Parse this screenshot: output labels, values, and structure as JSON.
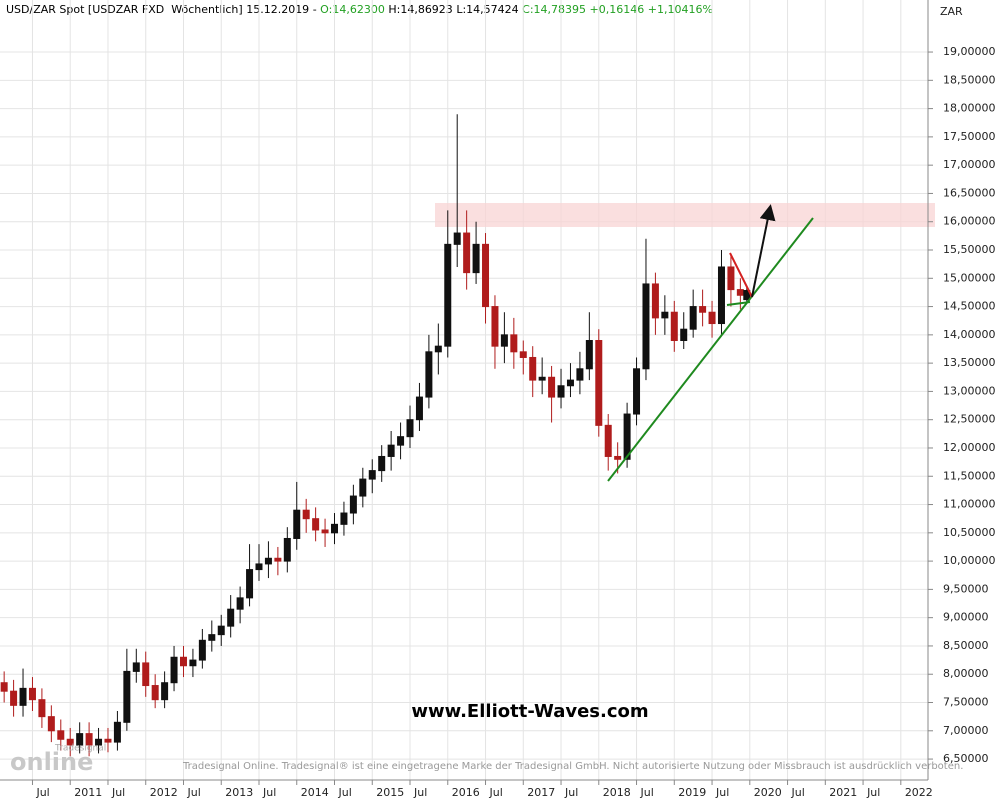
{
  "chart_data": {
    "type": "candlestick",
    "header": {
      "symbol": "USD/ZAR Spot [USDZAR FXD  Wöchentlich]",
      "date": "15.12.2019",
      "separator": "-",
      "open": "O:14,62300",
      "high": "H:14,86923",
      "low": "L:14,57424",
      "close": "C:14,78395",
      "change": "+0,16146",
      "change_pct": "+1,10416%"
    },
    "y_axis_label": "ZAR",
    "watermark": "www.Elliott-Waves.com",
    "footer": "Tradesignal Online. Tradesignal® ist eine eingetragene Marke der Tradesignal GmbH. Nicht autorisierte Nutzung oder Missbrauch ist ausdrücklich verboten.",
    "logo_small": "Tradesignal",
    "logo_big": "online",
    "up_color": "#111111",
    "down_color": "#b01c1c",
    "grid": true,
    "xlim": [
      2010.07,
      2022.36
    ],
    "xticks": [
      {
        "value": 2010.5,
        "label": "Jul"
      },
      {
        "value": 2011,
        "label": "2011"
      },
      {
        "value": 2011.5,
        "label": "Jul"
      },
      {
        "value": 2012,
        "label": "2012"
      },
      {
        "value": 2012.5,
        "label": "Jul"
      },
      {
        "value": 2013,
        "label": "2013"
      },
      {
        "value": 2013.5,
        "label": "Jul"
      },
      {
        "value": 2014,
        "label": "2014"
      },
      {
        "value": 2014.5,
        "label": "Jul"
      },
      {
        "value": 2015,
        "label": "2015"
      },
      {
        "value": 2015.5,
        "label": "Jul"
      },
      {
        "value": 2016,
        "label": "2016"
      },
      {
        "value": 2016.5,
        "label": "Jul"
      },
      {
        "value": 2017,
        "label": "2017"
      },
      {
        "value": 2017.5,
        "label": "Jul"
      },
      {
        "value": 2018,
        "label": "2018"
      },
      {
        "value": 2018.5,
        "label": "Jul"
      },
      {
        "value": 2019,
        "label": "2019"
      },
      {
        "value": 2019.5,
        "label": "Jul"
      },
      {
        "value": 2020,
        "label": "2020"
      },
      {
        "value": 2020.5,
        "label": "Jul"
      },
      {
        "value": 2021,
        "label": "2021"
      },
      {
        "value": 2021.5,
        "label": "Jul"
      },
      {
        "value": 2022,
        "label": "2022"
      }
    ],
    "ylim": [
      6.13,
      19.92
    ],
    "yticks": [
      {
        "value": 6.5,
        "label": "6,50000"
      },
      {
        "value": 7,
        "label": "7,00000"
      },
      {
        "value": 7.5,
        "label": "7,50000"
      },
      {
        "value": 8,
        "label": "8,00000"
      },
      {
        "value": 8.5,
        "label": "8,50000"
      },
      {
        "value": 9,
        "label": "9,00000"
      },
      {
        "value": 9.5,
        "label": "9,50000"
      },
      {
        "value": 10,
        "label": "10,00000"
      },
      {
        "value": 10.5,
        "label": "10,50000"
      },
      {
        "value": 11,
        "label": "11,00000"
      },
      {
        "value": 11.5,
        "label": "11,50000"
      },
      {
        "value": 12,
        "label": "12,00000"
      },
      {
        "value": 12.5,
        "label": "12,50000"
      },
      {
        "value": 13,
        "label": "13,00000"
      },
      {
        "value": 13.5,
        "label": "13,50000"
      },
      {
        "value": 14,
        "label": "14,00000"
      },
      {
        "value": 14.5,
        "label": "14,50000"
      },
      {
        "value": 15,
        "label": "15,00000"
      },
      {
        "value": 15.5,
        "label": "15,50000"
      },
      {
        "value": 16,
        "label": "16,00000"
      },
      {
        "value": 16.5,
        "label": "16,50000"
      },
      {
        "value": 17,
        "label": "17,00000"
      },
      {
        "value": 17.5,
        "label": "17,50000"
      },
      {
        "value": 18,
        "label": "18,00000"
      },
      {
        "value": 18.5,
        "label": "18,50000"
      },
      {
        "value": 19,
        "label": "19,00000"
      }
    ],
    "x": [
      2010.125,
      2010.25,
      2010.375,
      2010.5,
      2010.625,
      2010.75,
      2010.875,
      2011,
      2011.125,
      2011.25,
      2011.375,
      2011.5,
      2011.625,
      2011.75,
      2011.875,
      2012,
      2012.125,
      2012.25,
      2012.375,
      2012.5,
      2012.625,
      2012.75,
      2012.875,
      2013,
      2013.125,
      2013.25,
      2013.375,
      2013.5,
      2013.625,
      2013.75,
      2013.875,
      2014,
      2014.125,
      2014.25,
      2014.375,
      2014.5,
      2014.625,
      2014.75,
      2014.875,
      2015,
      2015.125,
      2015.25,
      2015.375,
      2015.5,
      2015.625,
      2015.75,
      2015.875,
      2016,
      2016.125,
      2016.25,
      2016.375,
      2016.5,
      2016.625,
      2016.75,
      2016.875,
      2017,
      2017.125,
      2017.25,
      2017.375,
      2017.5,
      2017.625,
      2017.75,
      2017.875,
      2018,
      2018.125,
      2018.25,
      2018.375,
      2018.5,
      2018.625,
      2018.75,
      2018.875,
      2019,
      2019.125,
      2019.25,
      2019.375,
      2019.5,
      2019.625,
      2019.75,
      2019.875,
      2019.96
    ],
    "open": [
      7.85,
      7.7,
      7.45,
      7.75,
      7.55,
      7.25,
      7.0,
      6.85,
      6.75,
      6.95,
      6.75,
      6.85,
      6.8,
      7.15,
      8.05,
      8.2,
      7.8,
      7.55,
      7.85,
      8.3,
      8.15,
      8.25,
      8.6,
      8.7,
      8.85,
      9.15,
      9.35,
      9.85,
      9.95,
      10.05,
      10.0,
      10.4,
      10.9,
      10.75,
      10.55,
      10.5,
      10.65,
      10.85,
      11.15,
      11.45,
      11.6,
      11.85,
      12.05,
      12.2,
      12.5,
      12.9,
      13.7,
      13.8,
      15.6,
      15.8,
      15.1,
      15.6,
      14.5,
      13.8,
      14.0,
      13.7,
      13.6,
      13.2,
      13.25,
      12.9,
      13.1,
      13.2,
      13.4,
      13.9,
      12.4,
      11.85,
      11.8,
      12.6,
      13.4,
      14.9,
      14.3,
      14.4,
      13.9,
      14.1,
      14.5,
      14.4,
      14.2,
      15.2,
      14.8,
      14.623
    ],
    "high": [
      8.05,
      7.9,
      8.1,
      7.95,
      7.75,
      7.45,
      7.2,
      7.05,
      7.15,
      7.15,
      7.05,
      7.05,
      7.35,
      8.45,
      8.45,
      8.4,
      8.0,
      8.05,
      8.5,
      8.5,
      8.45,
      8.8,
      8.95,
      9.05,
      9.4,
      9.55,
      10.3,
      10.3,
      10.35,
      10.25,
      10.6,
      11.4,
      11.1,
      10.95,
      10.75,
      10.85,
      11.05,
      11.35,
      11.65,
      11.8,
      12.05,
      12.3,
      12.45,
      12.75,
      13.15,
      14.0,
      14.2,
      16.2,
      17.9,
      16.2,
      16.0,
      15.8,
      14.7,
      14.4,
      14.3,
      13.9,
      13.8,
      13.6,
      13.45,
      13.4,
      13.5,
      13.7,
      14.4,
      14.1,
      12.6,
      12.1,
      12.8,
      13.6,
      15.7,
      15.1,
      14.7,
      14.6,
      14.4,
      14.8,
      14.8,
      14.6,
      15.5,
      15.4,
      15.0,
      14.86923
    ],
    "low": [
      7.5,
      7.25,
      7.25,
      7.35,
      7.05,
      6.8,
      6.65,
      6.55,
      6.6,
      6.55,
      6.6,
      6.62,
      6.65,
      7.0,
      7.85,
      7.6,
      7.4,
      7.4,
      7.7,
      7.95,
      7.95,
      8.1,
      8.4,
      8.5,
      8.65,
      8.9,
      9.2,
      9.65,
      9.7,
      9.75,
      9.8,
      10.2,
      10.5,
      10.35,
      10.25,
      10.3,
      10.45,
      10.65,
      10.95,
      11.2,
      11.4,
      11.6,
      11.8,
      12.0,
      12.3,
      12.7,
      13.3,
      13.6,
      15.2,
      14.8,
      14.9,
      14.2,
      13.4,
      13.5,
      13.4,
      13.3,
      12.9,
      12.95,
      12.45,
      12.7,
      12.9,
      12.95,
      13.2,
      12.2,
      11.6,
      11.55,
      11.65,
      12.4,
      13.2,
      14.0,
      14.0,
      13.7,
      13.75,
      13.95,
      14.15,
      13.95,
      14.0,
      14.5,
      14.45,
      14.57424
    ],
    "close": [
      7.7,
      7.45,
      7.75,
      7.55,
      7.25,
      7.0,
      6.85,
      6.75,
      6.95,
      6.75,
      6.85,
      6.8,
      7.15,
      8.05,
      8.2,
      7.8,
      7.55,
      7.85,
      8.3,
      8.15,
      8.25,
      8.6,
      8.7,
      8.85,
      9.15,
      9.35,
      9.85,
      9.95,
      10.05,
      10.0,
      10.4,
      10.9,
      10.75,
      10.55,
      10.5,
      10.65,
      10.85,
      11.15,
      11.45,
      11.6,
      11.85,
      12.05,
      12.2,
      12.5,
      12.9,
      13.7,
      13.8,
      15.6,
      15.8,
      15.1,
      15.6,
      14.5,
      13.8,
      14.0,
      13.7,
      13.6,
      13.2,
      13.25,
      12.9,
      13.1,
      13.2,
      13.4,
      13.9,
      12.4,
      11.85,
      11.8,
      12.6,
      13.4,
      14.9,
      14.3,
      14.4,
      13.9,
      14.1,
      14.5,
      14.4,
      14.2,
      15.2,
      14.8,
      14.7,
      14.78395
    ]
  }
}
